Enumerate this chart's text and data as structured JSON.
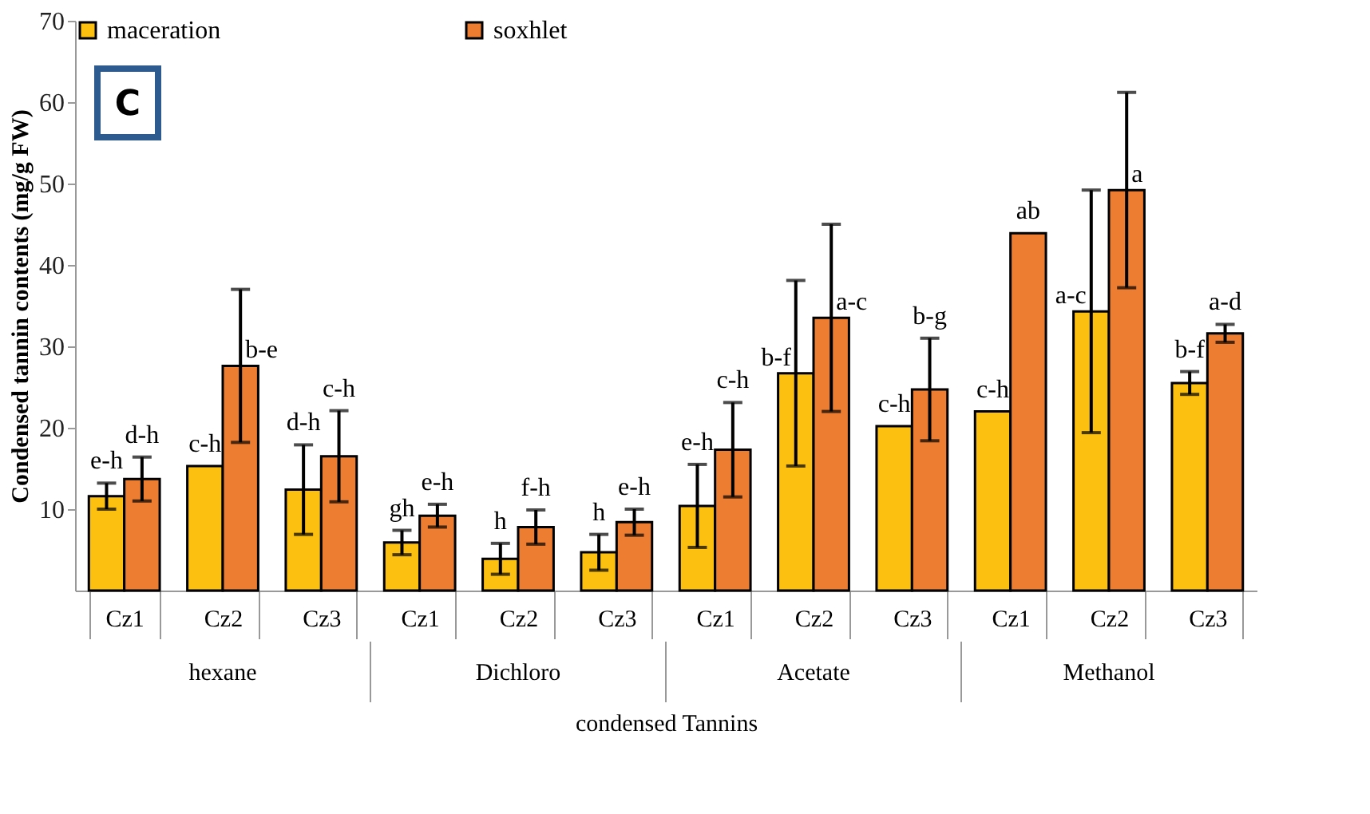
{
  "chart_data": {
    "type": "bar",
    "title": "C",
    "ylabel": "Condensed tannin contents (mg/g FW)",
    "xlabel": "condensed Tannins",
    "categories": [
      "Cz1",
      "Cz2",
      "Cz3",
      "Cz1",
      "Cz2",
      "Cz3",
      "Cz1",
      "Cz2",
      "Cz3",
      "Cz1",
      "Cz2",
      "Cz3"
    ],
    "annotations": [
      "hexane",
      "Dichloro",
      "Acetate",
      "Methanol"
    ],
    "series": [
      {
        "name": "maceration",
        "color": "#fcc010",
        "values": [
          11.6,
          15.3,
          12.4,
          5.9,
          3.9,
          4.7,
          10.4,
          26.7,
          20.2,
          22.0,
          34.3,
          25.5
        ],
        "errors": [
          1.6,
          null,
          5.5,
          1.5,
          1.9,
          2.2,
          5.1,
          11.4,
          null,
          null,
          14.9,
          1.4
        ],
        "value_labels": [
          "e-h",
          "c-h",
          "d-h",
          "gh",
          "h",
          "h",
          "e-h",
          "b-f",
          "c-h",
          "c-h",
          "a-c",
          "b-f"
        ]
      },
      {
        "name": "soxhlet",
        "color": "#ed7d31",
        "values": [
          13.7,
          27.6,
          16.5,
          9.2,
          7.8,
          8.4,
          17.3,
          33.5,
          24.7,
          43.9,
          49.2,
          31.6
        ],
        "errors": [
          2.7,
          9.4,
          5.6,
          1.4,
          2.1,
          1.6,
          5.8,
          11.5,
          6.3,
          null,
          12.0,
          1.1
        ],
        "value_labels": [
          "d-h",
          "b-e",
          "c-h",
          "e-h",
          "f-h",
          "e-h",
          "c-h",
          "a-c",
          "b-g",
          "ab",
          "a",
          "a-d"
        ]
      }
    ],
    "ylim": [
      0,
      70
    ],
    "yticks": [
      10,
      20,
      30,
      40,
      50,
      60,
      70
    ],
    "grid": false,
    "legend": "top"
  }
}
